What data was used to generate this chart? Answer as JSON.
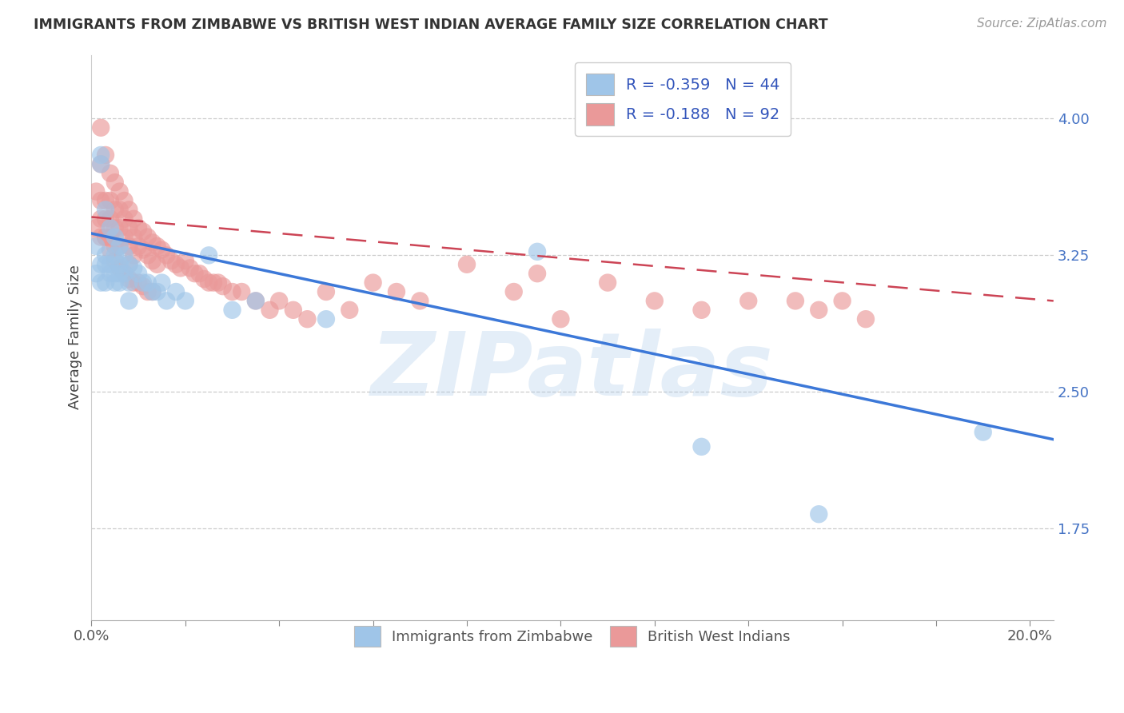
{
  "title": "IMMIGRANTS FROM ZIMBABWE VS BRITISH WEST INDIAN AVERAGE FAMILY SIZE CORRELATION CHART",
  "source": "Source: ZipAtlas.com",
  "ylabel": "Average Family Size",
  "xlim": [
    0.0,
    0.205
  ],
  "ylim": [
    1.25,
    4.35
  ],
  "yticks": [
    1.75,
    2.5,
    3.25,
    4.0
  ],
  "xticks": [
    0.0,
    0.02,
    0.04,
    0.06,
    0.08,
    0.1,
    0.12,
    0.14,
    0.16,
    0.18,
    0.2
  ],
  "xtick_labels_show": [
    "0.0%",
    "",
    "",
    "",
    "",
    "",
    "",
    "",
    "",
    "",
    "20.0%"
  ],
  "legend_labels": [
    "Immigrants from Zimbabwe",
    "British West Indians"
  ],
  "legend_r_blue": "-0.359",
  "legend_n_blue": "44",
  "legend_r_pink": "-0.188",
  "legend_n_pink": "92",
  "blue_color": "#9fc5e8",
  "pink_color": "#ea9999",
  "blue_line_color": "#3c78d8",
  "pink_line_color": "#cc4455",
  "watermark": "ZIPatlas",
  "watermark_color": "#a8c8e8",
  "blue_trend_x": [
    0.0,
    0.205
  ],
  "blue_trend_y": [
    3.37,
    2.24
  ],
  "pink_trend_x": [
    0.0,
    0.205
  ],
  "pink_trend_y": [
    3.46,
    3.0
  ],
  "blue_scatter_x": [
    0.001,
    0.001,
    0.002,
    0.002,
    0.002,
    0.002,
    0.003,
    0.003,
    0.003,
    0.003,
    0.004,
    0.004,
    0.004,
    0.005,
    0.005,
    0.005,
    0.005,
    0.006,
    0.006,
    0.006,
    0.006,
    0.007,
    0.007,
    0.008,
    0.008,
    0.008,
    0.009,
    0.01,
    0.011,
    0.012,
    0.013,
    0.014,
    0.015,
    0.016,
    0.018,
    0.02,
    0.025,
    0.03,
    0.035,
    0.05,
    0.095,
    0.13,
    0.155,
    0.19
  ],
  "blue_scatter_y": [
    3.3,
    3.15,
    3.8,
    3.75,
    3.2,
    3.1,
    3.5,
    3.25,
    3.2,
    3.1,
    3.4,
    3.2,
    3.15,
    3.35,
    3.25,
    3.15,
    3.1,
    3.3,
    3.2,
    3.15,
    3.1,
    3.25,
    3.15,
    3.2,
    3.1,
    3.0,
    3.18,
    3.15,
    3.1,
    3.1,
    3.05,
    3.05,
    3.1,
    3.0,
    3.05,
    3.0,
    3.25,
    2.95,
    3.0,
    2.9,
    3.27,
    2.2,
    1.83,
    2.28
  ],
  "pink_scatter_x": [
    0.001,
    0.001,
    0.002,
    0.002,
    0.002,
    0.002,
    0.002,
    0.003,
    0.003,
    0.003,
    0.003,
    0.004,
    0.004,
    0.004,
    0.004,
    0.005,
    0.005,
    0.005,
    0.005,
    0.006,
    0.006,
    0.006,
    0.006,
    0.007,
    0.007,
    0.007,
    0.008,
    0.008,
    0.008,
    0.008,
    0.009,
    0.009,
    0.009,
    0.01,
    0.01,
    0.011,
    0.011,
    0.012,
    0.012,
    0.013,
    0.013,
    0.014,
    0.014,
    0.015,
    0.016,
    0.017,
    0.018,
    0.019,
    0.02,
    0.021,
    0.022,
    0.023,
    0.024,
    0.025,
    0.026,
    0.027,
    0.028,
    0.03,
    0.032,
    0.035,
    0.038,
    0.04,
    0.043,
    0.046,
    0.05,
    0.055,
    0.06,
    0.065,
    0.07,
    0.08,
    0.09,
    0.095,
    0.1,
    0.11,
    0.12,
    0.13,
    0.14,
    0.15,
    0.155,
    0.16,
    0.165,
    0.003,
    0.004,
    0.005,
    0.006,
    0.007,
    0.008,
    0.009,
    0.01,
    0.011,
    0.012,
    0.013
  ],
  "pink_scatter_y": [
    3.6,
    3.4,
    3.95,
    3.75,
    3.55,
    3.45,
    3.35,
    3.8,
    3.55,
    3.45,
    3.35,
    3.7,
    3.55,
    3.45,
    3.35,
    3.65,
    3.5,
    3.4,
    3.3,
    3.6,
    3.5,
    3.4,
    3.3,
    3.55,
    3.45,
    3.35,
    3.5,
    3.4,
    3.3,
    3.2,
    3.45,
    3.35,
    3.25,
    3.4,
    3.3,
    3.38,
    3.28,
    3.35,
    3.25,
    3.32,
    3.22,
    3.3,
    3.2,
    3.28,
    3.25,
    3.22,
    3.2,
    3.18,
    3.22,
    3.18,
    3.15,
    3.15,
    3.12,
    3.1,
    3.1,
    3.1,
    3.08,
    3.05,
    3.05,
    3.0,
    2.95,
    3.0,
    2.95,
    2.9,
    3.05,
    2.95,
    3.1,
    3.05,
    3.0,
    3.2,
    3.05,
    3.15,
    2.9,
    3.1,
    3.0,
    2.95,
    3.0,
    3.0,
    2.95,
    3.0,
    2.9,
    3.35,
    3.28,
    3.22,
    3.18,
    3.15,
    3.12,
    3.1,
    3.1,
    3.08,
    3.05,
    3.05
  ]
}
